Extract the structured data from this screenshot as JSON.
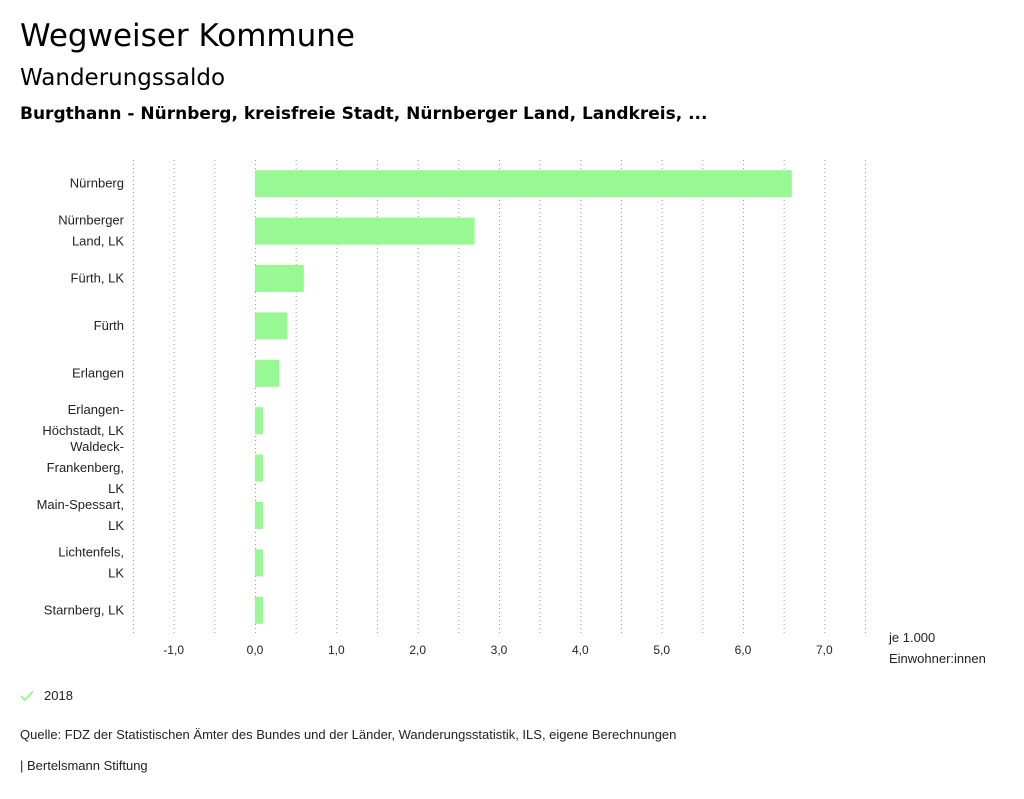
{
  "header": {
    "title": "Wegweiser Kommune",
    "subtitle": "Wanderungssaldo",
    "region": "Burgthann - Nürnberg, kreisfreie Stadt, Nürnberger Land, Landkreis, ..."
  },
  "chart_data": {
    "type": "bar",
    "orientation": "horizontal",
    "categories": [
      [
        "Nürnberg"
      ],
      [
        "Nürnberger",
        "Land, LK"
      ],
      [
        "Fürth, LK"
      ],
      [
        "Fürth"
      ],
      [
        "Erlangen"
      ],
      [
        "Erlangen-",
        "Höchstadt, LK"
      ],
      [
        "Waldeck-",
        "Frankenberg,",
        "LK"
      ],
      [
        "Main-Spessart,",
        "LK"
      ],
      [
        "Lichtenfels,",
        "LK"
      ],
      [
        "Starnberg, LK"
      ]
    ],
    "series": [
      {
        "name": "2018",
        "values": [
          6.6,
          2.7,
          0.6,
          0.4,
          0.3,
          0.1,
          0.1,
          0.1,
          0.1,
          0.1
        ]
      }
    ],
    "xlim": [
      -1.5,
      7.5
    ],
    "ticks": [
      -1,
      0,
      1,
      2,
      3,
      4,
      5,
      6,
      7
    ],
    "tick_labels": [
      "-1,0",
      "0,0",
      "1,0",
      "2,0",
      "3,0",
      "4,0",
      "5,0",
      "6,0",
      "7,0"
    ],
    "unit_label": [
      "je 1.000",
      "Einwohner:innen"
    ],
    "grid": true,
    "color": "#98f893"
  },
  "legend": {
    "label": "2018",
    "color": "#98f893"
  },
  "footer": {
    "source": "Quelle: FDZ der Statistischen Ämter des Bundes und der Länder, Wanderungsstatistik, ILS, eigene Berechnungen",
    "publisher": "| Bertelsmann Stiftung"
  }
}
